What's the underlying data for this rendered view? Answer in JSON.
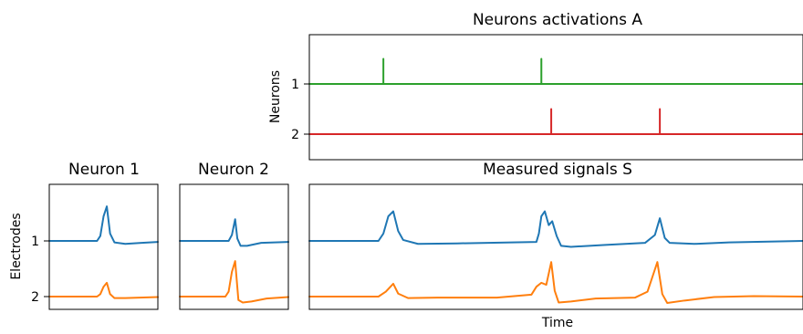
{
  "colors": {
    "green": "#2ca02c",
    "red": "#d62728",
    "blue": "#1f77b4",
    "orange": "#ff7f0e"
  },
  "chart_data": [
    {
      "id": "activations",
      "type": "line",
      "title": "Neurons activations A",
      "xlabel": "",
      "ylabel": "Neurons",
      "yticks": [
        "1",
        "2"
      ],
      "xlim": [
        0,
        100
      ],
      "series": [
        {
          "row": 1,
          "color_key": "green",
          "spikes": [
            15,
            47
          ],
          "height": 0.5
        },
        {
          "row": 2,
          "color_key": "red",
          "spikes": [
            49,
            71
          ],
          "height": 0.5
        }
      ]
    },
    {
      "id": "neuron1",
      "type": "line",
      "title": "Neuron 1",
      "title_color_key": "green",
      "ylabel": "Electrodes",
      "yticks": [
        "1",
        "2"
      ],
      "xlim": [
        0,
        100
      ],
      "series": [
        {
          "row": 1,
          "color_key": "blue",
          "points": [
            [
              0,
              0
            ],
            [
              44,
              0
            ],
            [
              47,
              0.1
            ],
            [
              50,
              0.5
            ],
            [
              53,
              0.7
            ],
            [
              56,
              0.15
            ],
            [
              60,
              -0.03
            ],
            [
              70,
              -0.06
            ],
            [
              85,
              -0.04
            ],
            [
              100,
              -0.02
            ]
          ]
        },
        {
          "row": 2,
          "color_key": "orange",
          "points": [
            [
              0,
              0
            ],
            [
              44,
              0
            ],
            [
              47,
              0.05
            ],
            [
              50,
              0.2
            ],
            [
              53,
              0.28
            ],
            [
              56,
              0.05
            ],
            [
              60,
              -0.03
            ],
            [
              70,
              -0.03
            ],
            [
              100,
              -0.01
            ]
          ]
        }
      ]
    },
    {
      "id": "neuron2",
      "type": "line",
      "title": "Neuron 2",
      "title_color_key": "red",
      "yticks": [],
      "xlim": [
        0,
        100
      ],
      "series": [
        {
          "row": 1,
          "color_key": "blue",
          "points": [
            [
              0,
              0
            ],
            [
              45,
              0
            ],
            [
              48,
              0.12
            ],
            [
              51,
              0.44
            ],
            [
              53,
              0.05
            ],
            [
              56,
              -0.1
            ],
            [
              62,
              -0.1
            ],
            [
              75,
              -0.04
            ],
            [
              100,
              -0.02
            ]
          ]
        },
        {
          "row": 2,
          "color_key": "orange",
          "points": [
            [
              0,
              0
            ],
            [
              42,
              0
            ],
            [
              45,
              0.1
            ],
            [
              48,
              0.5
            ],
            [
              51,
              0.72
            ],
            [
              54,
              -0.07
            ],
            [
              58,
              -0.12
            ],
            [
              66,
              -0.1
            ],
            [
              80,
              -0.04
            ],
            [
              100,
              -0.01
            ]
          ]
        }
      ]
    },
    {
      "id": "measured",
      "type": "line",
      "title": "Measured signals S",
      "xlabel": "Time",
      "yticks": [],
      "xlim": [
        0,
        100
      ],
      "series": [
        {
          "row": 1,
          "color_key": "blue",
          "points": [
            [
              0,
              0
            ],
            [
              14,
              0
            ],
            [
              15,
              0.15
            ],
            [
              16,
              0.5
            ],
            [
              17,
              0.6
            ],
            [
              18,
              0.2
            ],
            [
              19,
              0.02
            ],
            [
              22,
              -0.06
            ],
            [
              30,
              -0.05
            ],
            [
              46,
              -0.02
            ],
            [
              46.5,
              0.15
            ],
            [
              47,
              0.5
            ],
            [
              47.7,
              0.6
            ],
            [
              48.5,
              0.32
            ],
            [
              49.2,
              0.4
            ],
            [
              50.1,
              0.1
            ],
            [
              51,
              -0.1
            ],
            [
              53,
              -0.12
            ],
            [
              60,
              -0.08
            ],
            [
              68,
              -0.04
            ],
            [
              70,
              0.12
            ],
            [
              71,
              0.46
            ],
            [
              72,
              0.06
            ],
            [
              73,
              -0.04
            ],
            [
              78,
              -0.06
            ],
            [
              85,
              -0.03
            ],
            [
              100,
              0
            ]
          ]
        },
        {
          "row": 2,
          "color_key": "orange",
          "points": [
            [
              0,
              0
            ],
            [
              14,
              0
            ],
            [
              15.5,
              0.1
            ],
            [
              17,
              0.26
            ],
            [
              18,
              0.06
            ],
            [
              20,
              -0.03
            ],
            [
              26,
              -0.02
            ],
            [
              38,
              -0.02
            ],
            [
              45,
              0.04
            ],
            [
              46,
              0.2
            ],
            [
              47,
              0.28
            ],
            [
              48,
              0.24
            ],
            [
              49,
              0.7
            ],
            [
              49.7,
              0.12
            ],
            [
              50.5,
              -0.12
            ],
            [
              53,
              -0.1
            ],
            [
              58,
              -0.04
            ],
            [
              66,
              -0.02
            ],
            [
              68.5,
              0.1
            ],
            [
              70.5,
              0.7
            ],
            [
              71.5,
              0.05
            ],
            [
              72.5,
              -0.13
            ],
            [
              76,
              -0.08
            ],
            [
              82,
              -0.01
            ],
            [
              90,
              0.01
            ],
            [
              100,
              0
            ]
          ]
        }
      ]
    }
  ]
}
